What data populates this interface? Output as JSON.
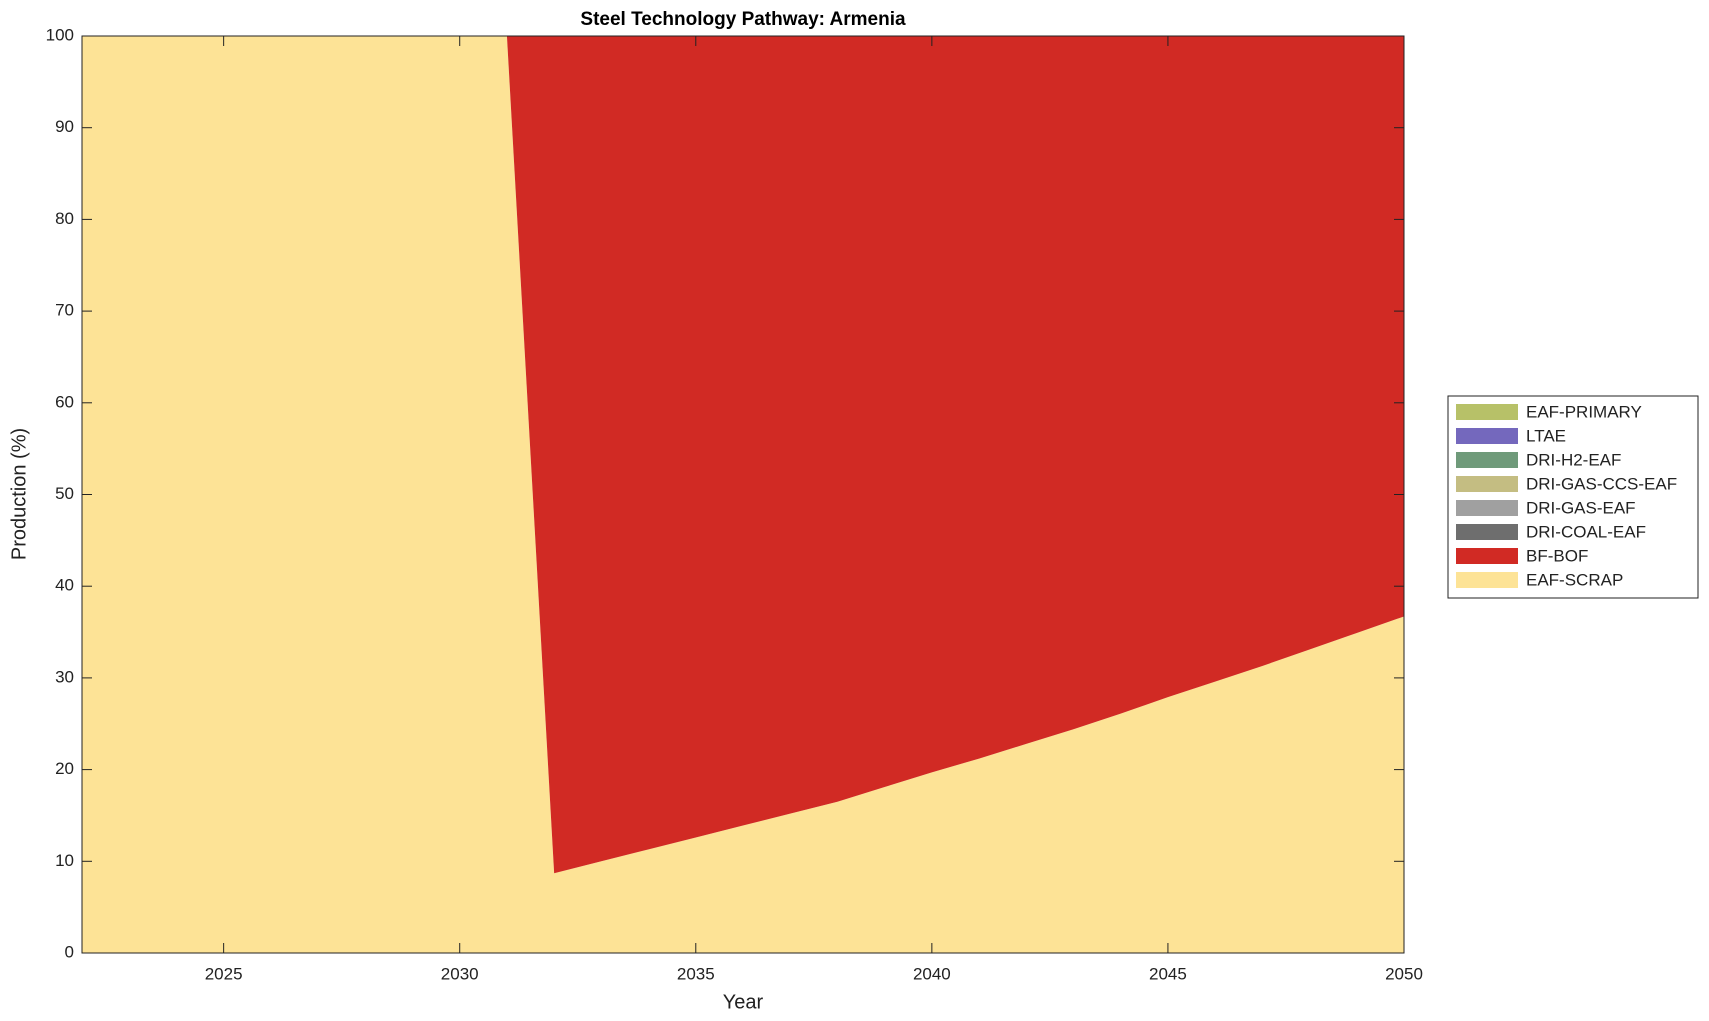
{
  "chart_data": {
    "type": "stacked-area",
    "title": "Steel Technology Pathway: Armenia",
    "x_label": "Year",
    "y_label": "Production (%)",
    "x": [
      2022,
      2023,
      2024,
      2025,
      2026,
      2027,
      2028,
      2029,
      2030,
      2031,
      2032,
      2033,
      2034,
      2035,
      2036,
      2037,
      2038,
      2039,
      2040,
      2041,
      2042,
      2043,
      2044,
      2045,
      2046,
      2047,
      2048,
      2049,
      2050
    ],
    "series": [
      {
        "name": "EAF-SCRAP",
        "color": "#fde396",
        "values": [
          100,
          100,
          100,
          100,
          100,
          100,
          100,
          100,
          100,
          100,
          8.7,
          10.0,
          11.3,
          12.6,
          13.9,
          15.2,
          16.5,
          18.1,
          19.7,
          21.2,
          22.8,
          24.4,
          26.1,
          27.9,
          29.6,
          31.3,
          33.1,
          34.9,
          36.7
        ]
      },
      {
        "name": "BF-BOF",
        "color": "#d12a24",
        "values": [
          0,
          0,
          0,
          0,
          0,
          0,
          0,
          0,
          0,
          0,
          91.3,
          90.0,
          88.7,
          87.4,
          86.1,
          84.8,
          83.5,
          81.9,
          80.3,
          78.8,
          77.2,
          75.6,
          73.9,
          72.1,
          70.4,
          68.7,
          66.9,
          65.1,
          63.3
        ]
      },
      {
        "name": "DRI-COAL-EAF",
        "color": "#6e6e6e",
        "values": [
          0,
          0,
          0,
          0,
          0,
          0,
          0,
          0,
          0,
          0,
          0,
          0,
          0,
          0,
          0,
          0,
          0,
          0,
          0,
          0,
          0,
          0,
          0,
          0,
          0,
          0,
          0,
          0,
          0
        ]
      },
      {
        "name": "DRI-GAS-EAF",
        "color": "#a0a0a0",
        "values": [
          0,
          0,
          0,
          0,
          0,
          0,
          0,
          0,
          0,
          0,
          0,
          0,
          0,
          0,
          0,
          0,
          0,
          0,
          0,
          0,
          0,
          0,
          0,
          0,
          0,
          0,
          0,
          0,
          0
        ]
      },
      {
        "name": "DRI-GAS-CCS-EAF",
        "color": "#c4bd82",
        "values": [
          0,
          0,
          0,
          0,
          0,
          0,
          0,
          0,
          0,
          0,
          0,
          0,
          0,
          0,
          0,
          0,
          0,
          0,
          0,
          0,
          0,
          0,
          0,
          0,
          0,
          0,
          0,
          0,
          0
        ]
      },
      {
        "name": "DRI-H2-EAF",
        "color": "#6f9a7a",
        "values": [
          0,
          0,
          0,
          0,
          0,
          0,
          0,
          0,
          0,
          0,
          0,
          0,
          0,
          0,
          0,
          0,
          0,
          0,
          0,
          0,
          0,
          0,
          0,
          0,
          0,
          0,
          0,
          0,
          0
        ]
      },
      {
        "name": "LTAE",
        "color": "#7468bd",
        "values": [
          0,
          0,
          0,
          0,
          0,
          0,
          0,
          0,
          0,
          0,
          0,
          0,
          0,
          0,
          0,
          0,
          0,
          0,
          0,
          0,
          0,
          0,
          0,
          0,
          0,
          0,
          0,
          0,
          0
        ]
      },
      {
        "name": "EAF-PRIMARY",
        "color": "#b7c168",
        "values": [
          0,
          0,
          0,
          0,
          0,
          0,
          0,
          0,
          0,
          0,
          0,
          0,
          0,
          0,
          0,
          0,
          0,
          0,
          0,
          0,
          0,
          0,
          0,
          0,
          0,
          0,
          0,
          0,
          0
        ]
      }
    ],
    "xlim": [
      2022,
      2050
    ],
    "xticks": [
      2025,
      2030,
      2035,
      2040,
      2045,
      2050
    ],
    "ylim": [
      0,
      100
    ],
    "yticks": [
      0,
      10,
      20,
      30,
      40,
      50,
      60,
      70,
      80,
      90,
      100
    ],
    "legend": "right",
    "grid": false
  }
}
